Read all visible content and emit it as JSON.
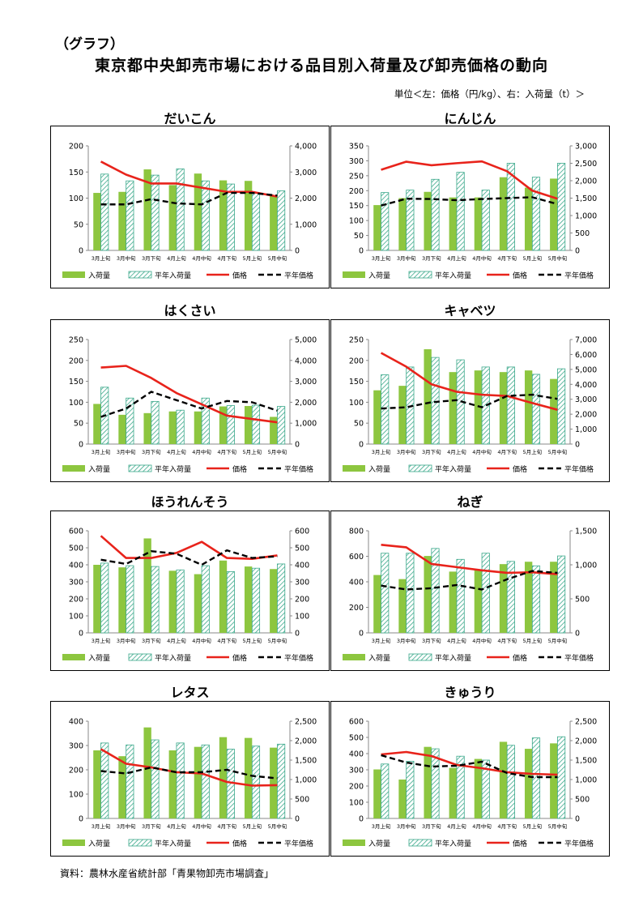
{
  "header": {
    "graph_label": "（グラフ）",
    "title": "東京都中央卸売市場における品目別入荷量及び卸売価格の動向",
    "unit_note": "単位＜左：価格（円/kg）、右：入荷量（t）＞"
  },
  "source": "資料：農林水産省統計部「青果物卸売市場調査」",
  "legend": {
    "arrival": "入荷量",
    "normal_arrival": "平年入荷量",
    "price": "価格",
    "normal_price": "平年価格"
  },
  "colors": {
    "arrival": "#8dc63f",
    "normal_arrival": "#3aa88a",
    "price": "#e8231b",
    "normal_price": "#000000"
  },
  "chart_data": [
    {
      "type": "bar",
      "title": "だいこん",
      "categories": [
        "3月上旬",
        "3月中旬",
        "3月下旬",
        "4月上旬",
        "4月中旬",
        "4月下旬",
        "5月上旬",
        "5月中旬"
      ],
      "ylim_left": [
        0,
        200
      ],
      "yticks_left": [
        "0",
        "50",
        "100",
        "150",
        "200"
      ],
      "ylim_right": [
        0,
        4000
      ],
      "yticks_right": [
        "0",
        "1,000",
        "2,000",
        "3,000",
        "4,000"
      ],
      "series": [
        {
          "name": "入荷量",
          "axis": "right",
          "kind": "bar",
          "values": [
            2200,
            2240,
            3100,
            2500,
            2940,
            2680,
            2660,
            2080
          ]
        },
        {
          "name": "平年入荷量",
          "axis": "right",
          "kind": "hatched-bar",
          "values": [
            2920,
            2660,
            2880,
            3120,
            2660,
            2540,
            2180,
            2280
          ]
        },
        {
          "name": "価格",
          "axis": "left",
          "kind": "line",
          "values": [
            170,
            145,
            128,
            128,
            120,
            112,
            112,
            103
          ]
        },
        {
          "name": "平年価格",
          "axis": "left",
          "kind": "dashed-line",
          "values": [
            88,
            88,
            98,
            90,
            88,
            110,
            110,
            105
          ]
        }
      ]
    },
    {
      "type": "bar",
      "title": "にんじん",
      "categories": [
        "3月上旬",
        "3月中旬",
        "3月下旬",
        "4月上旬",
        "4月中旬",
        "4月下旬",
        "5月上旬",
        "5月中旬"
      ],
      "ylim_left": [
        0,
        350
      ],
      "yticks_left": [
        "0",
        "50",
        "100",
        "150",
        "200",
        "250",
        "300",
        "350"
      ],
      "ylim_right": [
        0,
        3000
      ],
      "yticks_right": [
        "0",
        "500",
        "1,000",
        "1,500",
        "2,000",
        "2,500",
        "3,000"
      ],
      "series": [
        {
          "name": "入荷量",
          "axis": "right",
          "kind": "bar",
          "values": [
            1300,
            1500,
            1680,
            1520,
            1520,
            2100,
            1800,
            2060
          ]
        },
        {
          "name": "平年入荷量",
          "axis": "right",
          "kind": "hatched-bar",
          "values": [
            1660,
            1730,
            2040,
            2240,
            1730,
            2500,
            2100,
            2500
          ]
        },
        {
          "name": "価格",
          "axis": "left",
          "kind": "line",
          "values": [
            270,
            297,
            285,
            292,
            298,
            265,
            200,
            173
          ]
        },
        {
          "name": "平年価格",
          "axis": "left",
          "kind": "dashed-line",
          "values": [
            150,
            173,
            172,
            168,
            172,
            175,
            178,
            155
          ]
        }
      ]
    },
    {
      "type": "bar",
      "title": "はくさい",
      "categories": [
        "3月上旬",
        "3月中旬",
        "3月下旬",
        "4月上旬",
        "4月中旬",
        "4月下旬",
        "5月上旬",
        "5月中旬"
      ],
      "ylim_left": [
        0,
        250
      ],
      "yticks_left": [
        "0",
        "50",
        "100",
        "150",
        "200",
        "250"
      ],
      "ylim_right": [
        0,
        5000
      ],
      "yticks_right": [
        "0",
        "1,000",
        "2,000",
        "3,000",
        "4,000",
        "5,000"
      ],
      "series": [
        {
          "name": "入荷量",
          "axis": "right",
          "kind": "bar",
          "values": [
            1920,
            1400,
            1480,
            1560,
            1560,
            1800,
            1820,
            1300
          ]
        },
        {
          "name": "平年入荷量",
          "axis": "right",
          "kind": "hatched-bar",
          "values": [
            2720,
            2200,
            2040,
            1620,
            2200,
            1840,
            1860,
            1800
          ]
        },
        {
          "name": "価格",
          "axis": "left",
          "kind": "line",
          "values": [
            183,
            187,
            158,
            122,
            95,
            68,
            60,
            52
          ]
        },
        {
          "name": "平年価格",
          "axis": "left",
          "kind": "dashed-line",
          "values": [
            65,
            85,
            125,
            105,
            85,
            103,
            100,
            80
          ]
        }
      ]
    },
    {
      "type": "bar",
      "title": "キャベツ",
      "categories": [
        "3月上旬",
        "3月中旬",
        "3月下旬",
        "4月上旬",
        "4月中旬",
        "4月下旬",
        "5月上旬",
        "5月中旬"
      ],
      "ylim_left": [
        0,
        250
      ],
      "yticks_left": [
        "0",
        "50",
        "100",
        "150",
        "200",
        "250"
      ],
      "ylim_right": [
        0,
        7000
      ],
      "yticks_right": [
        "0",
        "1,000",
        "2,000",
        "3,000",
        "4,000",
        "5,000",
        "6,000",
        "7,000"
      ],
      "series": [
        {
          "name": "入荷量",
          "axis": "right",
          "kind": "bar",
          "values": [
            3600,
            3900,
            6350,
            4820,
            4930,
            4820,
            4930,
            4360
          ]
        },
        {
          "name": "平年入荷量",
          "axis": "right",
          "kind": "hatched-bar",
          "values": [
            4640,
            5160,
            5800,
            5640,
            5160,
            5160,
            4670,
            5040
          ]
        },
        {
          "name": "価格",
          "axis": "left",
          "kind": "line",
          "values": [
            218,
            185,
            143,
            125,
            118,
            115,
            98,
            82
          ]
        },
        {
          "name": "平年価格",
          "axis": "left",
          "kind": "dashed-line",
          "values": [
            85,
            88,
            100,
            105,
            88,
            115,
            118,
            108
          ]
        }
      ]
    },
    {
      "type": "bar",
      "title": "ほうれんそう",
      "categories": [
        "3月上旬",
        "3月中旬",
        "3月下旬",
        "4月上旬",
        "4月中旬",
        "4月下旬",
        "5月上旬",
        "5月中旬"
      ],
      "ylim_left": [
        0,
        600
      ],
      "yticks_left": [
        "0",
        "100",
        "200",
        "300",
        "400",
        "500",
        "600"
      ],
      "ylim_right": [
        0,
        600
      ],
      "yticks_right": [
        "0",
        "100",
        "200",
        "300",
        "400",
        "500",
        "600"
      ],
      "series": [
        {
          "name": "入荷量",
          "axis": "right",
          "kind": "bar",
          "values": [
            400,
            385,
            555,
            365,
            345,
            425,
            390,
            375
          ]
        },
        {
          "name": "平年入荷量",
          "axis": "right",
          "kind": "hatched-bar",
          "values": [
            410,
            395,
            390,
            370,
            395,
            360,
            380,
            405
          ]
        },
        {
          "name": "価格",
          "axis": "left",
          "kind": "line",
          "values": [
            570,
            440,
            440,
            470,
            535,
            440,
            435,
            455
          ]
        },
        {
          "name": "平年価格",
          "axis": "left",
          "kind": "dashed-line",
          "values": [
            430,
            405,
            480,
            465,
            400,
            485,
            440,
            450
          ]
        }
      ]
    },
    {
      "type": "bar",
      "title": "ねぎ",
      "categories": [
        "3月上旬",
        "3月中旬",
        "3月下旬",
        "4月上旬",
        "4月中旬",
        "4月下旬",
        "5月上旬",
        "5月中旬"
      ],
      "ylim_left": [
        0,
        800
      ],
      "yticks_left": [
        "0",
        "200",
        "400",
        "600",
        "800"
      ],
      "ylim_right": [
        0,
        1500
      ],
      "yticks_right": [
        "0",
        "500",
        "1,000",
        "1,500"
      ],
      "series": [
        {
          "name": "入荷量",
          "axis": "right",
          "kind": "bar",
          "values": [
            850,
            790,
            1130,
            900,
            920,
            1010,
            1045,
            1045
          ]
        },
        {
          "name": "平年入荷量",
          "axis": "right",
          "kind": "hatched-bar",
          "values": [
            1170,
            1170,
            1240,
            1080,
            1170,
            1050,
            985,
            1130
          ]
        },
        {
          "name": "価格",
          "axis": "left",
          "kind": "line",
          "values": [
            690,
            670,
            540,
            515,
            490,
            470,
            475,
            460
          ]
        },
        {
          "name": "平年価格",
          "axis": "left",
          "kind": "dashed-line",
          "values": [
            370,
            340,
            350,
            375,
            340,
            420,
            485,
            470
          ]
        }
      ]
    },
    {
      "type": "bar",
      "title": "レタス",
      "categories": [
        "3月上旬",
        "3月中旬",
        "3月下旬",
        "4月上旬",
        "4月中旬",
        "4月下旬",
        "5月上旬",
        "5月中旬"
      ],
      "ylim_left": [
        0,
        400
      ],
      "yticks_left": [
        "0",
        "100",
        "200",
        "300",
        "400"
      ],
      "ylim_right": [
        0,
        2500
      ],
      "yticks_right": [
        "0",
        "500",
        "1,000",
        "1,500",
        "2,000",
        "2,500"
      ],
      "series": [
        {
          "name": "入荷量",
          "axis": "right",
          "kind": "bar",
          "values": [
            1750,
            1600,
            2340,
            1750,
            1840,
            2090,
            2070,
            1820
          ]
        },
        {
          "name": "平年入荷量",
          "axis": "right",
          "kind": "hatched-bar",
          "values": [
            1940,
            1890,
            2020,
            1940,
            1890,
            1780,
            1860,
            1910
          ]
        },
        {
          "name": "価格",
          "axis": "left",
          "kind": "line",
          "values": [
            285,
            225,
            210,
            190,
            185,
            150,
            135,
            137
          ]
        },
        {
          "name": "平年価格",
          "axis": "left",
          "kind": "dashed-line",
          "values": [
            195,
            185,
            210,
            190,
            190,
            200,
            175,
            165
          ]
        }
      ]
    },
    {
      "type": "bar",
      "title": "きゅうり",
      "categories": [
        "3月上旬",
        "3月中旬",
        "3月下旬",
        "4月上旬",
        "4月中旬",
        "4月下旬",
        "5月上旬",
        "5月中旬"
      ],
      "ylim_left": [
        0,
        600
      ],
      "yticks_left": [
        "0",
        "100",
        "200",
        "300",
        "400",
        "500",
        "600"
      ],
      "ylim_right": [
        0,
        2500
      ],
      "yticks_right": [
        "0",
        "500",
        "1,000",
        "1,500",
        "2,000",
        "2,500"
      ],
      "series": [
        {
          "name": "入荷量",
          "axis": "right",
          "kind": "bar",
          "values": [
            1260,
            1000,
            1840,
            1300,
            1530,
            1970,
            1790,
            1930
          ]
        },
        {
          "name": "平年入荷量",
          "axis": "right",
          "kind": "hatched-bar",
          "values": [
            1400,
            1470,
            1790,
            1600,
            1500,
            1880,
            2070,
            2100
          ]
        },
        {
          "name": "価格",
          "axis": "left",
          "kind": "line",
          "values": [
            395,
            410,
            385,
            330,
            310,
            285,
            275,
            270
          ]
        },
        {
          "name": "平年価格",
          "axis": "left",
          "kind": "dashed-line",
          "values": [
            390,
            345,
            320,
            325,
            350,
            280,
            255,
            255
          ]
        }
      ]
    }
  ]
}
